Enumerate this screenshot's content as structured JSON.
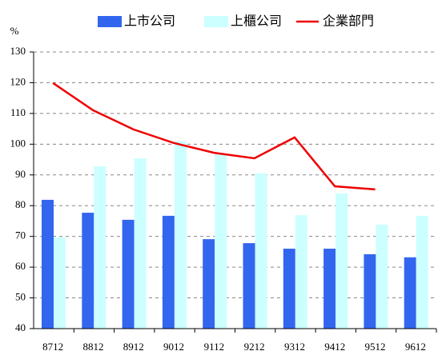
{
  "chart_data": {
    "type": "bar",
    "y_unit": "%",
    "categories": [
      "8712",
      "8812",
      "8912",
      "9012",
      "9112",
      "9212",
      "9312",
      "9412",
      "9512",
      "9612"
    ],
    "series": [
      {
        "name": "上市公司",
        "color": "#3366ee",
        "values": [
          81.9,
          77.7,
          75.4,
          76.7,
          69.1,
          67.8,
          66.0,
          66.0,
          64.2,
          63.2
        ]
      },
      {
        "name": "上櫃公司",
        "color": "#ccffff",
        "values": [
          69.7,
          92.8,
          95.4,
          100.9,
          96.7,
          90.5,
          76.9,
          84.0,
          73.8,
          76.7
        ]
      },
      {
        "name": "企業部門",
        "color": "#ee0000",
        "type": "line",
        "values": [
          119.9,
          111.0,
          104.8,
          100.4,
          97.2,
          95.4,
          102.2,
          86.3,
          85.3,
          null
        ]
      }
    ],
    "ylim": [
      40,
      130
    ],
    "yticks": [
      40,
      50,
      60,
      70,
      80,
      90,
      100,
      110,
      120,
      130
    ],
    "grid": true
  }
}
